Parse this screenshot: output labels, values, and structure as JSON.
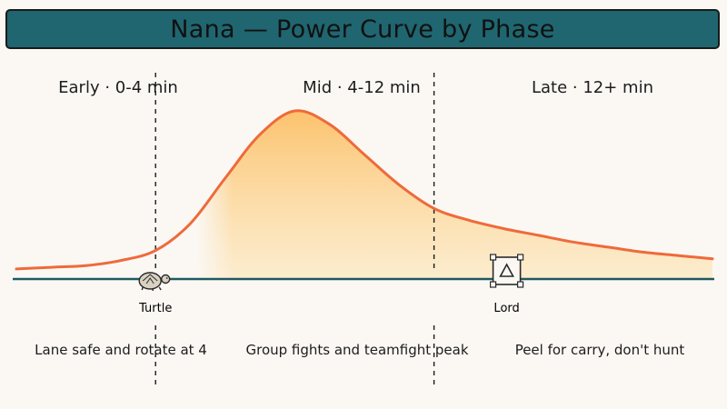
{
  "title": "Nana — Power Curve by Phase",
  "colors": {
    "banner": "#1f6670",
    "curve": "#ef6a3a",
    "fill": "#fbc56b",
    "baseline": "#1f5a60",
    "divider": "#1a1a1a"
  },
  "chart_data": {
    "type": "area",
    "title": "Nana — Power Curve by Phase",
    "xlabel": "",
    "ylabel": "",
    "xlim": [
      0,
      20
    ],
    "ylim": [
      0,
      100
    ],
    "x": [
      0,
      1,
      2,
      3,
      4,
      5,
      6,
      7,
      8,
      9,
      10,
      11,
      12,
      13,
      14,
      15,
      16,
      17,
      18,
      19,
      20
    ],
    "values": [
      6,
      7,
      8,
      11,
      17,
      33,
      60,
      86,
      100,
      92,
      74,
      56,
      42,
      35,
      30,
      26,
      22,
      19,
      16,
      14,
      12
    ],
    "phase_boundaries": [
      4,
      12
    ],
    "phases": [
      {
        "label": "Early · 0-4 min",
        "description": "Lane safe and rotate at 4"
      },
      {
        "label": "Mid · 4-12 min",
        "description": "Group fights and teamfight peak"
      },
      {
        "label": "Late · 12+ min",
        "description": "Peel for carry, don't hunt"
      }
    ],
    "markers": [
      {
        "label": "Turtle",
        "x": 4,
        "icon": "turtle-icon"
      },
      {
        "label": "Lord",
        "x": 12,
        "icon": "lord-icon"
      }
    ]
  }
}
